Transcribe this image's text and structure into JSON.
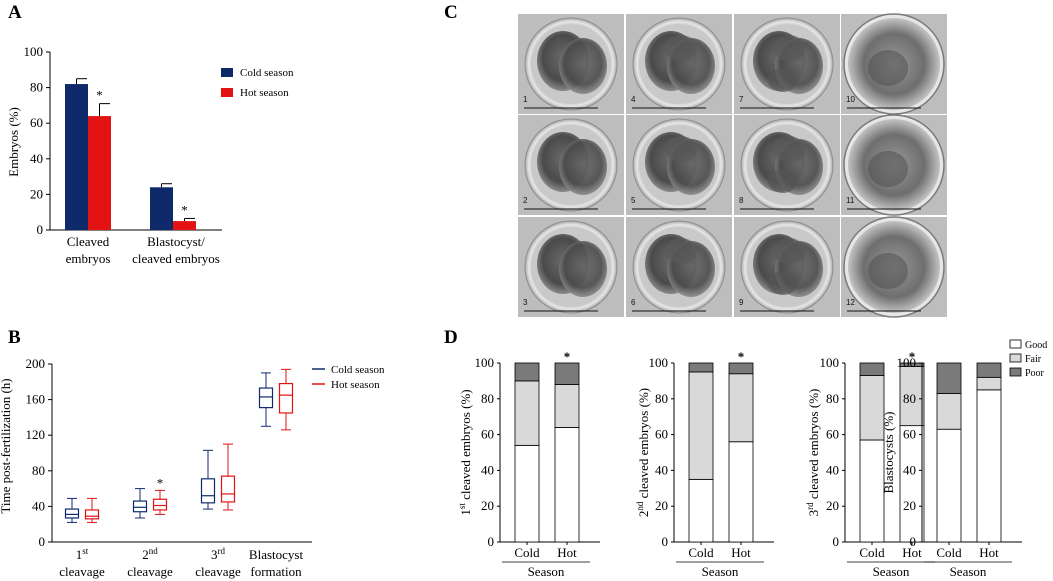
{
  "panel_labels": {
    "A": "A",
    "B": "B",
    "C": "C",
    "D": "D"
  },
  "colors": {
    "cold": "#0f2a6b",
    "hot": "#e31313",
    "good": "#ffffff",
    "fair": "#d9d9d9",
    "poor": "#7a7a7a"
  },
  "chart_data": [
    {
      "id": "A",
      "type": "bar",
      "ylabel": "Embryos (%)",
      "ylim": [
        0,
        100
      ],
      "yticks": [
        "0",
        "20",
        "40",
        "60",
        "80",
        "100"
      ],
      "categories": [
        [
          "Cleaved",
          "embryos"
        ],
        [
          "Blastocyst/",
          "cleaved embryos"
        ]
      ],
      "series": [
        {
          "name": "Cold season",
          "values": [
            82,
            24
          ],
          "errors": [
            3,
            2
          ]
        },
        {
          "name": "Hot season",
          "values": [
            64,
            5
          ],
          "errors": [
            7,
            1.5
          ],
          "significance": [
            "*",
            "*"
          ]
        }
      ],
      "legend": "right"
    },
    {
      "id": "B",
      "type": "box",
      "ylabel": "Time post-fertilization (h)",
      "ylim": [
        0,
        200
      ],
      "yticks": [
        "0",
        "40",
        "80",
        "120",
        "160",
        "200"
      ],
      "categories": [
        {
          "line1": "1",
          "sup": "st",
          "line2": "cleavage"
        },
        {
          "line1": "2",
          "sup": "nd",
          "line2": "cleavage"
        },
        {
          "line1": "3",
          "sup": "rd",
          "line2": "cleavage"
        },
        {
          "line1": "Blastocyst",
          "sup": "",
          "line2": "formation"
        }
      ],
      "series": [
        {
          "name": "Cold season",
          "boxes": [
            {
              "min": 22,
              "q1": 27,
              "median": 31,
              "q3": 37,
              "max": 49
            },
            {
              "min": 27,
              "q1": 34,
              "median": 39,
              "q3": 46,
              "max": 60
            },
            {
              "min": 37,
              "q1": 44,
              "median": 52,
              "q3": 71,
              "max": 103
            },
            {
              "min": 130,
              "q1": 151,
              "median": 163,
              "q3": 173,
              "max": 190
            }
          ]
        },
        {
          "name": "Hot season",
          "boxes": [
            {
              "min": 22,
              "q1": 26,
              "median": 29,
              "q3": 36,
              "max": 49
            },
            {
              "min": 31,
              "q1": 36,
              "median": 41,
              "q3": 48,
              "max": 58
            },
            {
              "min": 36,
              "q1": 45,
              "median": 54,
              "q3": 74,
              "max": 110
            },
            {
              "min": 126,
              "q1": 145,
              "median": 165,
              "q3": 178,
              "max": 194
            }
          ],
          "significance": [
            "",
            "*",
            "",
            ""
          ]
        }
      ],
      "legend": "top-right"
    },
    {
      "id": "D",
      "type": "stacked-bar",
      "legend_entries": [
        "Good",
        "Fair",
        "Poor"
      ],
      "xlabel": "Season",
      "categories": [
        "Cold",
        "Hot"
      ],
      "yticks": [
        "0",
        "20",
        "40",
        "60",
        "80",
        "100"
      ],
      "ylim": [
        0,
        100
      ],
      "subcharts": [
        {
          "ylabel": {
            "pre": "1",
            "sup": "st",
            "post": " cleaved embryos  (%)"
          },
          "stacks": [
            {
              "good": 54,
              "fair": 36,
              "poor": 10
            },
            {
              "good": 64,
              "fair": 24,
              "poor": 12
            }
          ],
          "significance": [
            "",
            "*"
          ]
        },
        {
          "ylabel": {
            "pre": "2",
            "sup": "nd",
            "post": " cleaved embryos  (%)"
          },
          "stacks": [
            {
              "good": 35,
              "fair": 60,
              "poor": 5
            },
            {
              "good": 56,
              "fair": 38,
              "poor": 6
            }
          ],
          "significance": [
            "",
            "*"
          ]
        },
        {
          "ylabel": {
            "pre": "3",
            "sup": "rd",
            "post": " cleaved embryos  (%)"
          },
          "stacks": [
            {
              "good": 57,
              "fair": 36,
              "poor": 7
            },
            {
              "good": 65,
              "fair": 33,
              "poor": 2
            }
          ],
          "significance": [
            "",
            "*"
          ]
        },
        {
          "ylabel": {
            "pre": "Blastocysts (%)",
            "sup": "",
            "post": ""
          },
          "stacks": [
            {
              "good": 63,
              "fair": 20,
              "poor": 17
            },
            {
              "good": 85,
              "fair": 7,
              "poor": 8
            }
          ],
          "significance": [
            "",
            ""
          ]
        }
      ]
    }
  ],
  "micrographs": {
    "numbers": [
      "1",
      "4",
      "7",
      "10",
      "2",
      "5",
      "8",
      "11",
      "3",
      "6",
      "9",
      "12"
    ]
  }
}
